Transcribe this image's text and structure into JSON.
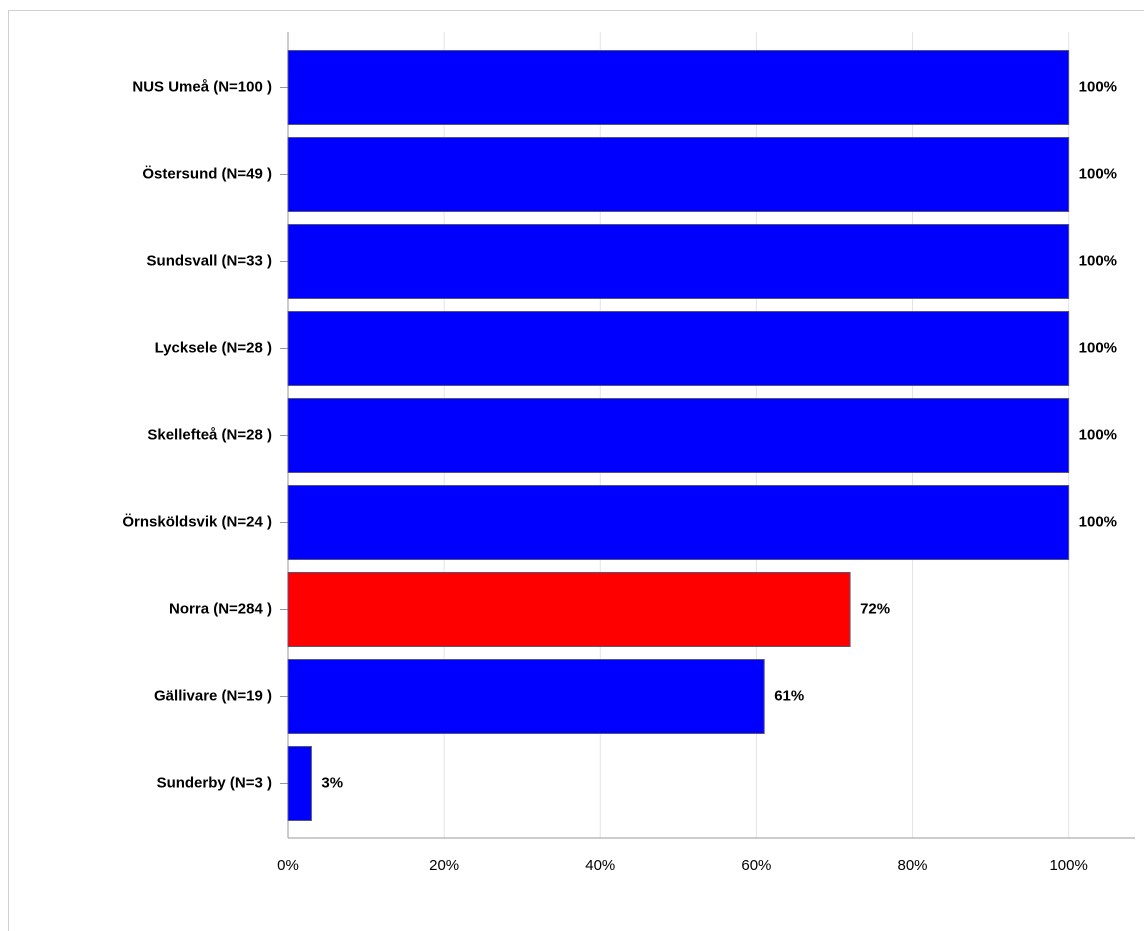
{
  "chart_data": {
    "type": "bar",
    "orientation": "horizontal",
    "categories": [
      "NUS Umeå (N=100 )",
      "Östersund (N=49 )",
      "Sundsvall (N=33 )",
      "Lycksele (N=28 )",
      "Skellefteå (N=28 )",
      "Örnsköldsvik (N=24 )",
      "Norra (N=284 )",
      "Gällivare (N=19 )",
      "Sunderby (N=3 )"
    ],
    "values": [
      100,
      100,
      100,
      100,
      100,
      100,
      72,
      61,
      3
    ],
    "value_labels": [
      "100%",
      "100%",
      "100%",
      "100%",
      "100%",
      "100%",
      "72%",
      "61%",
      "3%"
    ],
    "colors": [
      "#0000ff",
      "#0000ff",
      "#0000ff",
      "#0000ff",
      "#0000ff",
      "#0000ff",
      "#ff0000",
      "#0000ff",
      "#0000ff"
    ],
    "xlim": [
      0,
      108.5
    ],
    "xticks": [
      {
        "value": 0,
        "label": "0%"
      },
      {
        "value": 20,
        "label": "20%"
      },
      {
        "value": 40,
        "label": "40%"
      },
      {
        "value": 60,
        "label": "60%"
      },
      {
        "value": 80,
        "label": "80%"
      },
      {
        "value": 100,
        "label": "100%"
      }
    ],
    "grid": true
  }
}
